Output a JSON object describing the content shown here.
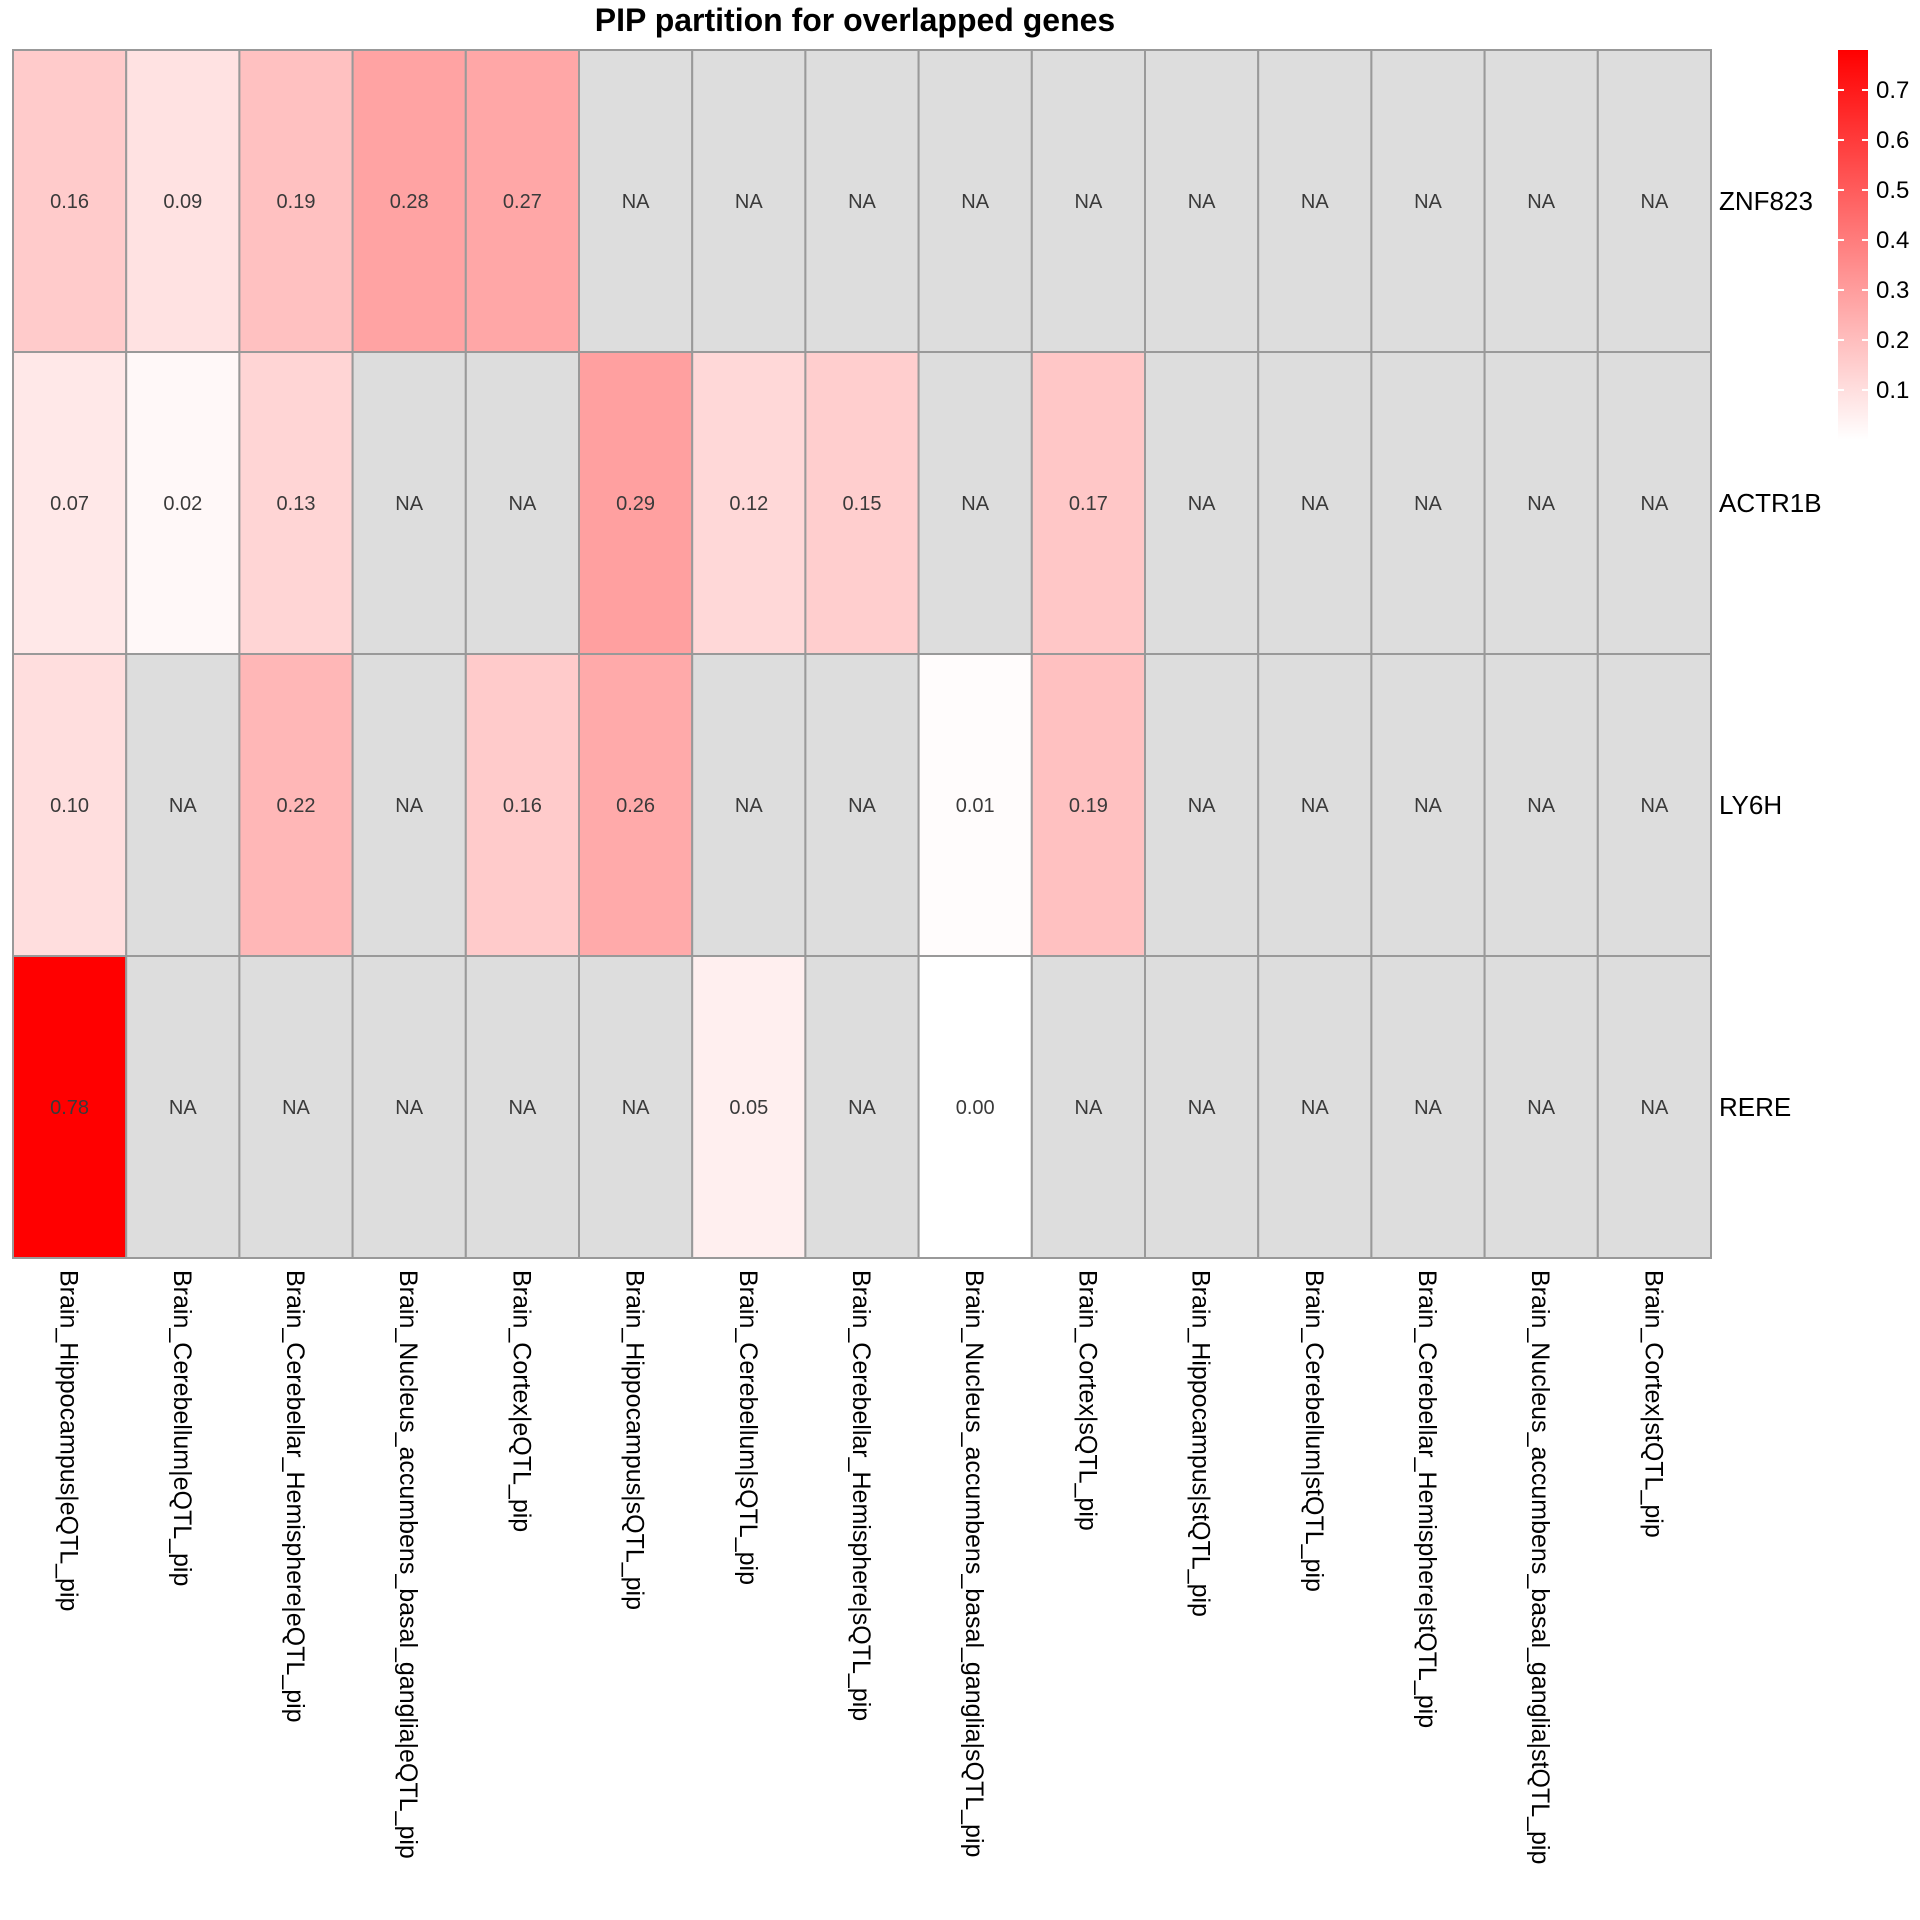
{
  "chart_data": {
    "type": "heatmap",
    "title": "PIP partition for overlapped genes",
    "rows": [
      "ZNF823",
      "ACTR1B",
      "LY6H",
      "RERE"
    ],
    "columns": [
      "Brain_Hippocampus|eQTL_pip",
      "Brain_Cerebellum|eQTL_pip",
      "Brain_Cerebellar_Hemisphere|eQTL_pip",
      "Brain_Nucleus_accumbens_basal_ganglia|eQTL_pip",
      "Brain_Cortex|eQTL_pip",
      "Brain_Hippocampus|sQTL_pip",
      "Brain_Cerebellum|sQTL_pip",
      "Brain_Cerebellar_Hemisphere|sQTL_pip",
      "Brain_Nucleus_accumbens_basal_ganglia|sQTL_pip",
      "Brain_Cortex|sQTL_pip",
      "Brain_Hippocampus|stQTL_pip",
      "Brain_Cerebellum|stQTL_pip",
      "Brain_Cerebellar_Hemisphere|stQTL_pip",
      "Brain_Nucleus_accumbens_basal_ganglia|stQTL_pip",
      "Brain_Cortex|stQTL_pip"
    ],
    "values": [
      [
        0.16,
        0.09,
        0.19,
        0.28,
        0.27,
        null,
        null,
        null,
        null,
        null,
        null,
        null,
        null,
        null,
        null
      ],
      [
        0.07,
        0.02,
        0.13,
        null,
        null,
        0.29,
        0.12,
        0.15,
        null,
        0.17,
        null,
        null,
        null,
        null,
        null
      ],
      [
        0.1,
        null,
        0.22,
        null,
        0.16,
        0.26,
        null,
        null,
        0.01,
        0.19,
        null,
        null,
        null,
        null,
        null
      ],
      [
        0.78,
        null,
        null,
        null,
        null,
        null,
        0.05,
        null,
        0.0,
        null,
        null,
        null,
        null,
        null,
        null
      ]
    ],
    "cell_labels": [
      [
        "0.16",
        "0.09",
        "0.19",
        "0.28",
        "0.27",
        "NA",
        "NA",
        "NA",
        "NA",
        "NA",
        "NA",
        "NA",
        "NA",
        "NA",
        "NA"
      ],
      [
        "0.07",
        "0.02",
        "0.13",
        "NA",
        "NA",
        "0.29",
        "0.12",
        "0.15",
        "NA",
        "0.17",
        "NA",
        "NA",
        "NA",
        "NA",
        "NA"
      ],
      [
        "0.10",
        "NA",
        "0.22",
        "NA",
        "0.16",
        "0.26",
        "NA",
        "NA",
        "0.01",
        "0.19",
        "NA",
        "NA",
        "NA",
        "NA",
        "NA"
      ],
      [
        "0.78",
        "NA",
        "NA",
        "NA",
        "NA",
        "NA",
        "0.05",
        "NA",
        "0.00",
        "NA",
        "NA",
        "NA",
        "NA",
        "NA",
        "NA"
      ]
    ],
    "color_scale": {
      "min": 0.0,
      "max": 0.78,
      "low_color": "#ffffff",
      "high_color": "#ff0000",
      "na_color": "#dddddd",
      "border_color": "#999999",
      "ticks": [
        "0.1",
        "0.2",
        "0.3",
        "0.4",
        "0.5",
        "0.6",
        "0.7"
      ]
    },
    "legend_position": "top-right"
  }
}
